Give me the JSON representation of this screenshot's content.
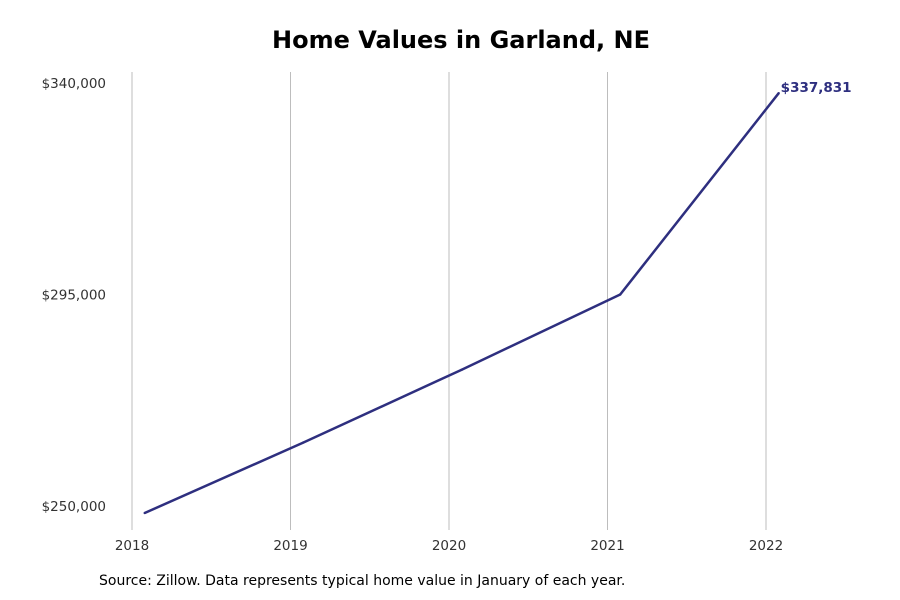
{
  "chart_data": {
    "type": "line",
    "title": "Home Values in Garland, NE",
    "x": [
      2018.08,
      2019.08,
      2020.08,
      2021.08,
      2022.08
    ],
    "xticks": [
      2018,
      2019,
      2020,
      2021,
      2022
    ],
    "xtick_labels": [
      "2018",
      "2019",
      "2020",
      "2021",
      "2022"
    ],
    "yticks": [
      250000,
      295000,
      340000
    ],
    "ytick_labels": [
      "$250,000",
      "$295,000",
      "$340,000"
    ],
    "ylim": [
      250000,
      340000
    ],
    "series": [
      {
        "values": [
          248500,
          263500,
          279000,
          295000,
          337831
        ],
        "color": "#2e2f7f"
      }
    ],
    "end_label": "$337,831",
    "grid": "vertical",
    "xlabel": "",
    "ylabel": ""
  },
  "source": "Source: Zillow. Data represents typical home value in January of each year."
}
